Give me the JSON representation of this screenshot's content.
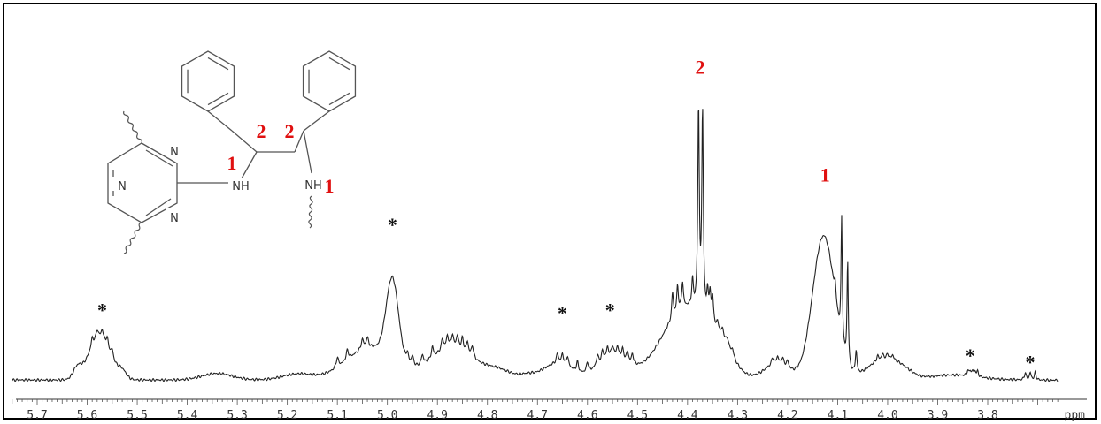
{
  "chart_data": {
    "type": "line",
    "title": "",
    "xlabel": "ppm",
    "ylabel": "",
    "xlim": [
      5.75,
      3.65
    ],
    "x_reversed": true,
    "tick_values": [
      5.7,
      5.6,
      5.5,
      5.4,
      5.3,
      5.2,
      5.1,
      5.0,
      4.9,
      4.8,
      4.7,
      4.6,
      4.5,
      4.4,
      4.3,
      4.2,
      4.1,
      4.0,
      3.9,
      3.8
    ],
    "tick_labels": [
      "5.7",
      "5.6",
      "5.5",
      "5.4",
      "5.3",
      "5.2",
      "5.1",
      "5.0",
      "4.9",
      "4.8",
      "4.7",
      "4.6",
      "4.5",
      "4.4",
      "4.3",
      "4.2",
      "4.1",
      "4.0",
      "3.9",
      "3.8"
    ],
    "unit_label": "ppm",
    "peak_annotations": [
      {
        "x": 4.375,
        "y": 0.92,
        "label": "2",
        "color": "#e01010"
      },
      {
        "x": 4.125,
        "y": 0.59,
        "label": "1",
        "color": "#e01010"
      },
      {
        "x": 5.57,
        "y": 0.21,
        "label": "*",
        "color": "#111111"
      },
      {
        "x": 4.99,
        "y": 0.47,
        "label": "*",
        "color": "#111111"
      },
      {
        "x": 4.65,
        "y": 0.2,
        "label": "*",
        "color": "#111111"
      },
      {
        "x": 4.555,
        "y": 0.21,
        "label": "*",
        "color": "#111111"
      },
      {
        "x": 3.835,
        "y": 0.07,
        "label": "*",
        "color": "#111111"
      },
      {
        "x": 3.715,
        "y": 0.05,
        "label": "*",
        "color": "#111111"
      }
    ],
    "structure_labels": {
      "atoms": [
        "N",
        "N",
        "N",
        "NH",
        "NH"
      ],
      "positions": [
        "1",
        "2",
        "2",
        "1"
      ]
    }
  }
}
